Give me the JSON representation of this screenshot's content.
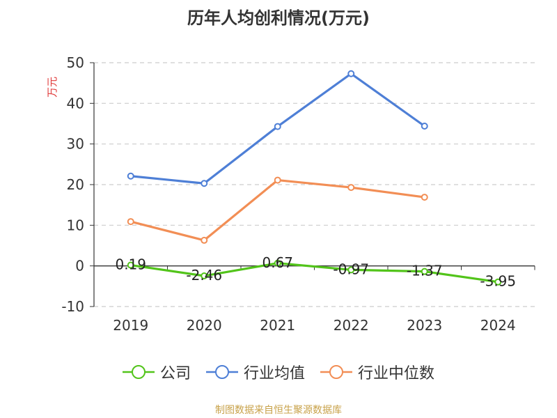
{
  "title": "历年人均创利情况(万元)",
  "footer": "制图数据来自恒生聚源数据库",
  "chart_data": {
    "type": "line",
    "title": "历年人均创利情况(万元)",
    "ylabel": "万元",
    "xlabel": "",
    "categories": [
      "2019",
      "2020",
      "2021",
      "2022",
      "2023",
      "2024"
    ],
    "ylim": [
      -10,
      50
    ],
    "yticks": [
      -10,
      0,
      10,
      20,
      30,
      40,
      50
    ],
    "grid": true,
    "legend_position": "bottom",
    "series": [
      {
        "name": "公司",
        "color": "#52c41a",
        "values": [
          0.19,
          -2.46,
          0.67,
          -0.97,
          -1.37,
          -3.95
        ],
        "labels": [
          "0.19",
          "-2.46",
          "0.67",
          "-0.97",
          "-1.37",
          "-3.95"
        ]
      },
      {
        "name": "行业均值",
        "color": "#4e7fd6",
        "values": [
          22.1,
          20.3,
          34.3,
          47.3,
          34.4,
          null
        ]
      },
      {
        "name": "行业中位数",
        "color": "#f28e55",
        "values": [
          10.9,
          6.3,
          21.1,
          19.3,
          16.9,
          null
        ]
      }
    ]
  }
}
